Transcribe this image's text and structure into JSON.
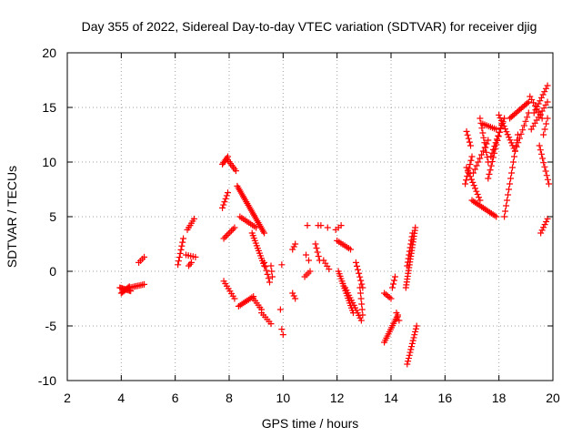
{
  "chart_data": {
    "type": "scatter",
    "title": "Day 355 of 2022, Sidereal Day-to-day VTEC variation (SDTVAR) for receiver djig",
    "xlabel": "GPS time / hours",
    "ylabel": "SDTVAR / TECUs",
    "xlim": [
      2,
      20
    ],
    "ylim": [
      -10,
      20
    ],
    "xticks": [
      2,
      4,
      6,
      8,
      10,
      12,
      14,
      16,
      18,
      20
    ],
    "yticks": [
      -10,
      -5,
      0,
      5,
      10,
      15,
      20
    ],
    "grid": true,
    "marker": "+",
    "color": "#ff0000",
    "segments": [
      {
        "x0": 3.95,
        "y0": -1.5,
        "x1": 4.35,
        "y1": -1.8,
        "n": 10
      },
      {
        "x0": 4.0,
        "y0": -2.0,
        "x1": 4.3,
        "y1": -1.4,
        "n": 8
      },
      {
        "x0": 4.3,
        "y0": -1.5,
        "x1": 4.85,
        "y1": -1.2,
        "n": 10
      },
      {
        "x0": 4.65,
        "y0": 0.8,
        "x1": 4.85,
        "y1": 1.3,
        "n": 4
      },
      {
        "x0": 6.1,
        "y0": 0.6,
        "x1": 6.3,
        "y1": 3.0,
        "n": 8
      },
      {
        "x0": 6.4,
        "y0": 1.5,
        "x1": 6.75,
        "y1": 1.3,
        "n": 5
      },
      {
        "x0": 6.45,
        "y0": 3.8,
        "x1": 6.7,
        "y1": 4.8,
        "n": 6
      },
      {
        "x0": 6.5,
        "y0": 0.5,
        "x1": 6.6,
        "y1": 0.8,
        "n": 3
      },
      {
        "x0": 7.75,
        "y0": 9.8,
        "x1": 7.95,
        "y1": 10.5,
        "n": 6
      },
      {
        "x0": 7.95,
        "y0": 10.2,
        "x1": 8.25,
        "y1": 9.2,
        "n": 7
      },
      {
        "x0": 7.75,
        "y0": 5.8,
        "x1": 7.95,
        "y1": 7.2,
        "n": 6
      },
      {
        "x0": 7.8,
        "y0": 3.0,
        "x1": 8.2,
        "y1": 4.0,
        "n": 8
      },
      {
        "x0": 7.8,
        "y0": -0.9,
        "x1": 8.2,
        "y1": -2.5,
        "n": 8
      },
      {
        "x0": 8.3,
        "y0": 7.8,
        "x1": 9.3,
        "y1": 3.5,
        "n": 28
      },
      {
        "x0": 8.4,
        "y0": 5.0,
        "x1": 9.0,
        "y1": 4.0,
        "n": 10
      },
      {
        "x0": 8.85,
        "y0": 3.5,
        "x1": 9.3,
        "y1": 0.5,
        "n": 14
      },
      {
        "x0": 8.35,
        "y0": -3.2,
        "x1": 8.9,
        "y1": -2.3,
        "n": 10
      },
      {
        "x0": 8.9,
        "y0": -2.5,
        "x1": 9.2,
        "y1": -3.5,
        "n": 6
      },
      {
        "x0": 9.2,
        "y0": -3.8,
        "x1": 9.55,
        "y1": -4.8,
        "n": 6
      },
      {
        "x0": 9.3,
        "y0": 0.8,
        "x1": 9.5,
        "y1": -1.0,
        "n": 6
      },
      {
        "x0": 9.55,
        "y0": 0.5,
        "x1": 9.6,
        "y1": -0.5,
        "n": 3
      },
      {
        "x0": 9.95,
        "y0": 0.6,
        "x1": 10.0,
        "y1": 0.6,
        "n": 1
      },
      {
        "x0": 9.9,
        "y0": -3.5,
        "x1": 9.95,
        "y1": -3.5,
        "n": 1
      },
      {
        "x0": 9.95,
        "y0": -5.3,
        "x1": 10.0,
        "y1": -5.8,
        "n": 2
      },
      {
        "x0": 10.35,
        "y0": 2.0,
        "x1": 10.45,
        "y1": 2.5,
        "n": 3
      },
      {
        "x0": 10.35,
        "y0": -2.0,
        "x1": 10.45,
        "y1": -2.5,
        "n": 3
      },
      {
        "x0": 10.9,
        "y0": 4.2,
        "x1": 10.95,
        "y1": 4.2,
        "n": 1
      },
      {
        "x0": 10.85,
        "y0": 1.5,
        "x1": 10.95,
        "y1": 1.0,
        "n": 2
      },
      {
        "x0": 10.8,
        "y0": -0.5,
        "x1": 11.0,
        "y1": 0.0,
        "n": 4
      },
      {
        "x0": 11.2,
        "y0": 2.5,
        "x1": 11.35,
        "y1": 1.0,
        "n": 5
      },
      {
        "x0": 11.3,
        "y0": 4.2,
        "x1": 11.4,
        "y1": 4.2,
        "n": 2
      },
      {
        "x0": 11.5,
        "y0": 1.0,
        "x1": 11.7,
        "y1": 0.2,
        "n": 4
      },
      {
        "x0": 11.65,
        "y0": 4.0,
        "x1": 11.75,
        "y1": 4.0,
        "n": 1
      },
      {
        "x0": 11.95,
        "y0": 3.8,
        "x1": 12.15,
        "y1": 4.2,
        "n": 3
      },
      {
        "x0": 12.0,
        "y0": 2.8,
        "x1": 12.5,
        "y1": 2.0,
        "n": 8
      },
      {
        "x0": 12.05,
        "y0": 0.0,
        "x1": 12.6,
        "y1": -3.8,
        "n": 18
      },
      {
        "x0": 12.3,
        "y0": -1.5,
        "x1": 12.9,
        "y1": -4.5,
        "n": 14
      },
      {
        "x0": 12.7,
        "y0": 0.8,
        "x1": 12.95,
        "y1": -1.5,
        "n": 8
      },
      {
        "x0": 12.85,
        "y0": -1.5,
        "x1": 12.95,
        "y1": -4.0,
        "n": 6
      },
      {
        "x0": 13.75,
        "y0": -2.0,
        "x1": 14.0,
        "y1": -2.5,
        "n": 5
      },
      {
        "x0": 14.05,
        "y0": -1.5,
        "x1": 14.15,
        "y1": -0.5,
        "n": 4
      },
      {
        "x0": 13.75,
        "y0": -6.5,
        "x1": 14.25,
        "y1": -4.0,
        "n": 14
      },
      {
        "x0": 14.2,
        "y0": -3.8,
        "x1": 14.3,
        "y1": -4.5,
        "n": 3
      },
      {
        "x0": 14.55,
        "y0": -1.5,
        "x1": 14.9,
        "y1": 4.0,
        "n": 22
      },
      {
        "x0": 14.6,
        "y0": 0.5,
        "x1": 14.8,
        "y1": 3.5,
        "n": 10
      },
      {
        "x0": 14.6,
        "y0": -8.5,
        "x1": 14.95,
        "y1": -5.0,
        "n": 14
      },
      {
        "x0": 16.75,
        "y0": 8.0,
        "x1": 17.0,
        "y1": 10.5,
        "n": 8
      },
      {
        "x0": 16.8,
        "y0": 12.8,
        "x1": 16.95,
        "y1": 11.5,
        "n": 5
      },
      {
        "x0": 16.8,
        "y0": 9.5,
        "x1": 17.3,
        "y1": 6.5,
        "n": 12
      },
      {
        "x0": 17.0,
        "y0": 6.5,
        "x1": 17.9,
        "y1": 5.0,
        "n": 16
      },
      {
        "x0": 17.05,
        "y0": 9.0,
        "x1": 17.6,
        "y1": 12.0,
        "n": 10
      },
      {
        "x0": 17.3,
        "y0": 14.0,
        "x1": 17.6,
        "y1": 10.0,
        "n": 10
      },
      {
        "x0": 17.4,
        "y0": 13.5,
        "x1": 17.9,
        "y1": 13.0,
        "n": 8
      },
      {
        "x0": 17.6,
        "y0": 8.5,
        "x1": 18.1,
        "y1": 13.5,
        "n": 14
      },
      {
        "x0": 17.7,
        "y0": 10.5,
        "x1": 18.2,
        "y1": 14.0,
        "n": 12
      },
      {
        "x0": 18.0,
        "y0": 14.3,
        "x1": 18.6,
        "y1": 11.0,
        "n": 14
      },
      {
        "x0": 18.2,
        "y0": 5.0,
        "x1": 18.7,
        "y1": 12.5,
        "n": 16
      },
      {
        "x0": 18.4,
        "y0": 14.0,
        "x1": 19.1,
        "y1": 15.5,
        "n": 14
      },
      {
        "x0": 18.6,
        "y0": 11.0,
        "x1": 19.1,
        "y1": 14.5,
        "n": 10
      },
      {
        "x0": 19.15,
        "y0": 16.0,
        "x1": 19.6,
        "y1": 14.0,
        "n": 8
      },
      {
        "x0": 19.2,
        "y0": 13.0,
        "x1": 19.8,
        "y1": 15.5,
        "n": 10
      },
      {
        "x0": 19.3,
        "y0": 14.5,
        "x1": 19.8,
        "y1": 17.0,
        "n": 10
      },
      {
        "x0": 19.5,
        "y0": 11.5,
        "x1": 19.85,
        "y1": 8.0,
        "n": 10
      },
      {
        "x0": 19.65,
        "y0": 12.5,
        "x1": 19.8,
        "y1": 14.0,
        "n": 4
      },
      {
        "x0": 19.55,
        "y0": 3.5,
        "x1": 19.8,
        "y1": 4.8,
        "n": 6
      }
    ]
  }
}
